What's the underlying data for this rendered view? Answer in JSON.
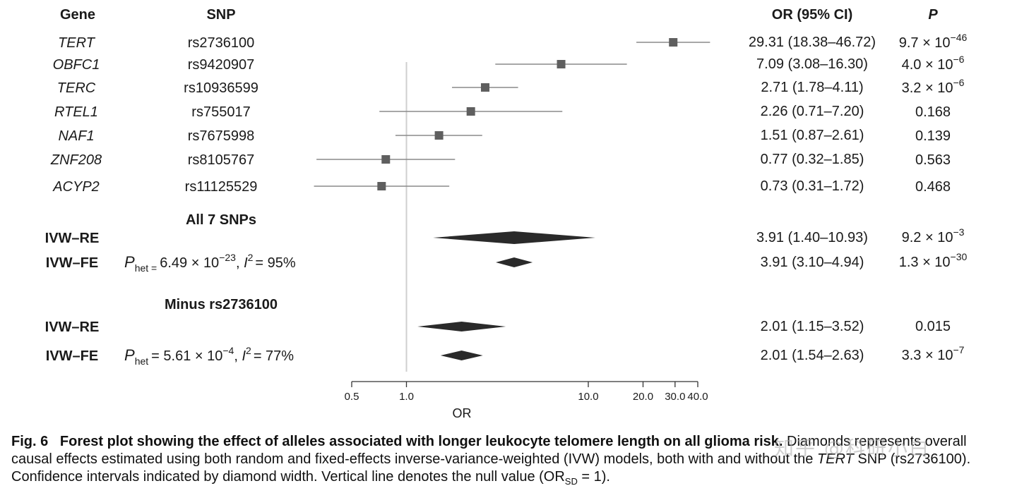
{
  "chart_data": {
    "type": "forest",
    "x_scale": "log",
    "xlim": [
      0.5,
      40.0
    ],
    "x_ticks": [
      "0.5",
      "1.0",
      "10.0",
      "20.0",
      "30.0",
      "40.0"
    ],
    "xlabel": "OR",
    "null_value": 1.0,
    "headers": {
      "gene": "Gene",
      "snp": "SNP",
      "or_ci": "OR (95% CI)",
      "p": "P"
    },
    "snps": [
      {
        "gene": "TERT",
        "snp": "rs2736100",
        "or": 29.31,
        "lo": 18.38,
        "hi": 46.72,
        "or_ci": "29.31 (18.38–46.72)",
        "p_base": "9.7 × 10",
        "p_exp": "−46"
      },
      {
        "gene": "OBFC1",
        "snp": "rs9420907",
        "or": 7.09,
        "lo": 3.08,
        "hi": 16.3,
        "or_ci": "7.09 (3.08–16.30)",
        "p_base": "4.0 × 10",
        "p_exp": "−6"
      },
      {
        "gene": "TERC",
        "snp": "rs10936599",
        "or": 2.71,
        "lo": 1.78,
        "hi": 4.11,
        "or_ci": "2.71 (1.78–4.11)",
        "p_base": "3.2 × 10",
        "p_exp": "−6"
      },
      {
        "gene": "RTEL1",
        "snp": "rs755017",
        "or": 2.26,
        "lo": 0.71,
        "hi": 7.2,
        "or_ci": "2.26 (0.71–7.20)",
        "p_base": "0.168",
        "p_exp": ""
      },
      {
        "gene": "NAF1",
        "snp": "rs7675998",
        "or": 1.51,
        "lo": 0.87,
        "hi": 2.61,
        "or_ci": "1.51 (0.87–2.61)",
        "p_base": "0.139",
        "p_exp": ""
      },
      {
        "gene": "ZNF208",
        "snp": "rs8105767",
        "or": 0.77,
        "lo": 0.32,
        "hi": 1.85,
        "or_ci": "0.77 (0.32–1.85)",
        "p_base": "0.563",
        "p_exp": ""
      },
      {
        "gene": "ACYP2",
        "snp": "rs11125529",
        "or": 0.73,
        "lo": 0.31,
        "hi": 1.72,
        "or_ci": "0.73 (0.31–1.72)",
        "p_base": "0.468",
        "p_exp": ""
      }
    ],
    "groups": [
      {
        "title": "All 7 SNPs",
        "het_label": "P",
        "het_sub": "het =",
        "het_value": "6.49 × 10",
        "het_exp": "−23",
        "i2_label": "I",
        "i2_text": "= 95%",
        "rows": [
          {
            "label": "IVW–RE",
            "or": 3.91,
            "lo": 1.4,
            "hi": 10.93,
            "or_ci": "3.91 (1.40–10.93)",
            "p_base": "9.2 × 10",
            "p_exp": "−3"
          },
          {
            "label": "IVW–FE",
            "or": 3.91,
            "lo": 3.1,
            "hi": 4.94,
            "or_ci": "3.91 (3.10–4.94)",
            "p_base": "1.3 × 10",
            "p_exp": "−30"
          }
        ]
      },
      {
        "title": "Minus rs2736100",
        "het_label": "P",
        "het_sub": "het",
        "het_value": "= 5.61 × 10",
        "het_exp": "−4",
        "i2_label": "I",
        "i2_text": "= 77%",
        "rows": [
          {
            "label": "IVW–RE",
            "or": 2.01,
            "lo": 1.15,
            "hi": 3.52,
            "or_ci": "2.01 (1.15–3.52)",
            "p_base": "0.015",
            "p_exp": ""
          },
          {
            "label": "IVW–FE",
            "or": 2.01,
            "lo": 1.54,
            "hi": 2.63,
            "or_ci": "2.01 (1.54–2.63)",
            "p_base": "3.3 × 10",
            "p_exp": "−7"
          }
        ]
      }
    ]
  },
  "caption": {
    "fig_label": "Fig. 6",
    "title": "Forest plot showing the effect of alleles associated with longer leukocyte telomere length on all glioma risk.",
    "text_1": "Diamonds represents overall causal effects estimated using both random and fixed-effects inverse-variance-weighted (IVW) models, both with and without the",
    "text_italic": "TERT",
    "text_2": "SNP (rs2736100). Confidence intervals indicated by diamond width. Vertical line denotes the null value (OR",
    "text_sub": "SD",
    "text_3": "= 1)."
  },
  "watermark": "知乎 @科研小白"
}
